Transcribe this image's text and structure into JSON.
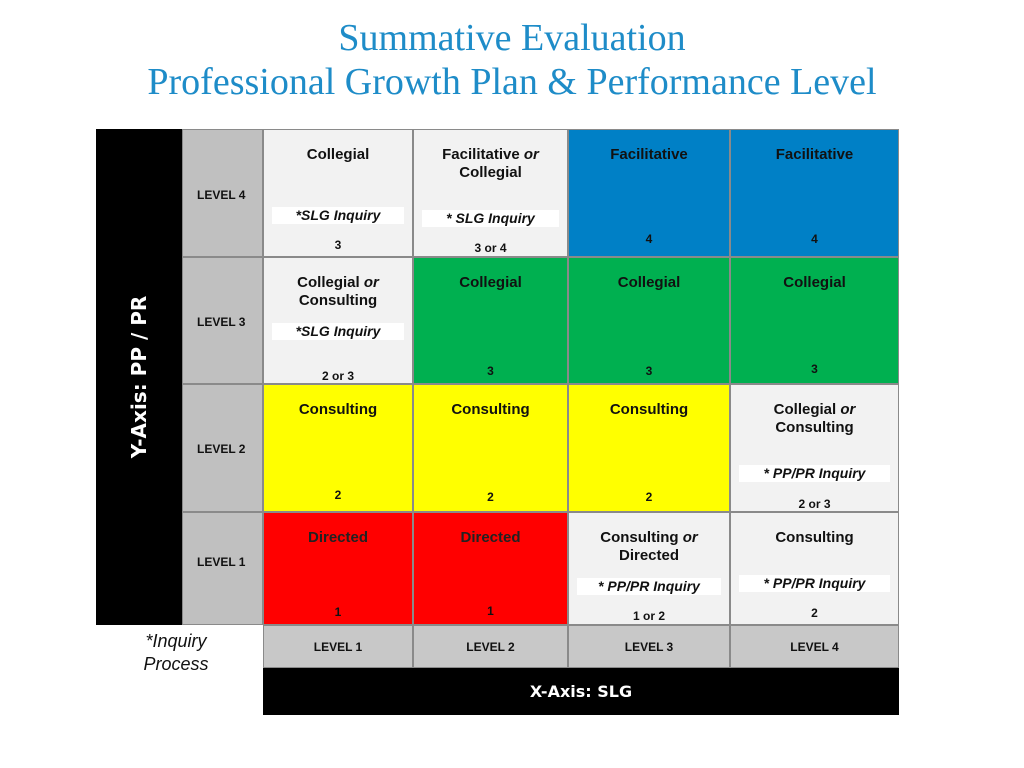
{
  "title": {
    "line1": "Summative Evaluation",
    "line2": "Professional Growth Plan & Performance Level"
  },
  "y_axis_label": "Y-Axis: PP / PR",
  "x_axis_label": "X-Axis: SLG",
  "inquiry_note": "*Inquiry Process",
  "row_levels": [
    "LEVEL 4",
    "LEVEL 3",
    "LEVEL 2",
    "LEVEL 1"
  ],
  "col_levels": [
    "LEVEL 1",
    "LEVEL 2",
    "LEVEL 3",
    "LEVEL 4"
  ],
  "colors": {
    "title": "#1e8cc8",
    "blue": "#0080c6",
    "green": "#00b050",
    "yellow": "#ffff00",
    "red": "#ff0000",
    "grey": "#f2f2f2"
  },
  "cells": {
    "r4c1": {
      "heading": "Collegial",
      "inquiry": "*SLG  Inquiry",
      "score": "3"
    },
    "r4c2": {
      "heading_a": "Facilitative",
      "heading_or": "or",
      "heading_b": "Collegial",
      "inquiry": "* SLG Inquiry",
      "score": "3 or 4"
    },
    "r4c3": {
      "heading": "Facilitative",
      "score": "4"
    },
    "r4c4": {
      "heading": "Facilitative",
      "score": "4"
    },
    "r3c1": {
      "heading_a": "Collegial",
      "heading_or": "or",
      "heading_b": "Consulting",
      "inquiry": "*SLG Inquiry",
      "score": "2 or 3"
    },
    "r3c2": {
      "heading": "Collegial",
      "score": "3"
    },
    "r3c3": {
      "heading": "Collegial",
      "score": "3"
    },
    "r3c4": {
      "heading": "Collegial",
      "score": "3"
    },
    "r2c1": {
      "heading": "Consulting",
      "score": "2"
    },
    "r2c2": {
      "heading": "Consulting",
      "score": "2"
    },
    "r2c3": {
      "heading": "Consulting",
      "score": "2"
    },
    "r2c4": {
      "heading_a": "Collegial",
      "heading_or": "or",
      "heading_b": "Consulting",
      "inquiry": "* PP/PR Inquiry",
      "score": "2 or 3"
    },
    "r1c1": {
      "heading": "Directed",
      "score": "1"
    },
    "r1c2": {
      "heading": "Directed",
      "score": "1"
    },
    "r1c3": {
      "heading_a": "Consulting",
      "heading_or": "or",
      "heading_b": "Directed",
      "inquiry": "* PP/PR Inquiry",
      "score": "1 or 2"
    },
    "r1c4": {
      "heading": "Consulting",
      "inquiry": "* PP/PR Inquiry",
      "score": "2"
    }
  }
}
